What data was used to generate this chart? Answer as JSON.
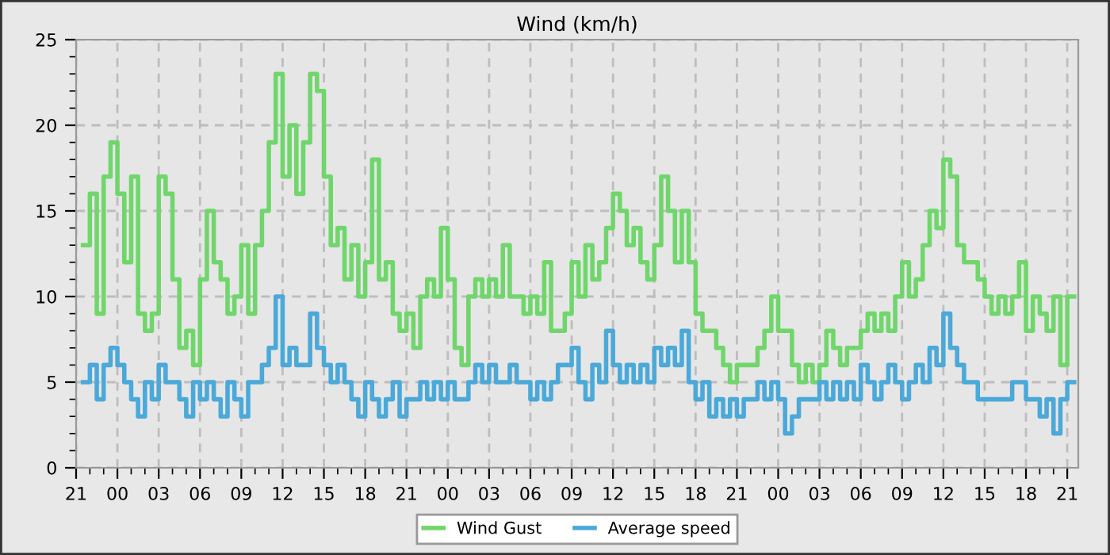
{
  "chart_data": {
    "type": "step",
    "title": "Wind (km/h)",
    "ylim": [
      0,
      25
    ],
    "yticks": [
      0,
      5,
      10,
      15,
      20,
      25
    ],
    "categories": [
      "21",
      null,
      null,
      null,
      null,
      null,
      "00",
      null,
      null,
      null,
      null,
      null,
      "03",
      null,
      null,
      null,
      null,
      null,
      "06",
      null,
      null,
      null,
      null,
      null,
      "09",
      null,
      null,
      null,
      null,
      null,
      "12",
      null,
      null,
      null,
      null,
      null,
      "15",
      null,
      null,
      null,
      null,
      null,
      "18",
      null,
      null,
      null,
      null,
      null,
      "21",
      null,
      null,
      null,
      null,
      null,
      "00",
      null,
      null,
      null,
      null,
      null,
      "03",
      null,
      null,
      null,
      null,
      null,
      "06",
      null,
      null,
      null,
      null,
      null,
      "09",
      null,
      null,
      null,
      null,
      null,
      "12",
      null,
      null,
      null,
      null,
      null,
      "15",
      null,
      null,
      null,
      null,
      null,
      "18",
      null,
      null,
      null,
      null,
      null,
      "21",
      null,
      null,
      null,
      null,
      null,
      "00",
      null,
      null,
      null,
      null,
      null,
      "03",
      null,
      null,
      null,
      null,
      null,
      "06",
      null,
      null,
      null,
      null,
      null,
      "09",
      null,
      null,
      null,
      null,
      null,
      "12",
      null,
      null,
      null,
      null,
      null,
      "15",
      null,
      null,
      null,
      null,
      null,
      "18",
      null,
      null,
      null,
      null,
      null,
      "21",
      null
    ],
    "grid": true,
    "legend": "bottom",
    "series": [
      {
        "name": "Wind Gust",
        "color": "#70d66c",
        "values": [
          null,
          13,
          16,
          9,
          17,
          19,
          16,
          12,
          17,
          9,
          8,
          9,
          17,
          16,
          11,
          7,
          8,
          6,
          11,
          15,
          12,
          11,
          9,
          10,
          13,
          9,
          13,
          15,
          19,
          23,
          17,
          20,
          16,
          19,
          23,
          22,
          17,
          13,
          14,
          11,
          13,
          10,
          12,
          18,
          11,
          12,
          9,
          8,
          9,
          7,
          10,
          11,
          10,
          14,
          11,
          7,
          6,
          10,
          11,
          10,
          11,
          10,
          13,
          10,
          10,
          9,
          10,
          9,
          12,
          8,
          8,
          9,
          12,
          10,
          13,
          11,
          12,
          14,
          16,
          15,
          13,
          14,
          12,
          11,
          13,
          17,
          15,
          12,
          15,
          12,
          9,
          8,
          8,
          7,
          6,
          5,
          6,
          6,
          6,
          7,
          8,
          10,
          8,
          8,
          6,
          5,
          6,
          5,
          6,
          8,
          7,
          6,
          7,
          7,
          8,
          9,
          8,
          9,
          8,
          10,
          12,
          10,
          11,
          13,
          15,
          14,
          18,
          17,
          13,
          12,
          12,
          11,
          10,
          9,
          10,
          9,
          10,
          12,
          8,
          10,
          9,
          8,
          10,
          6,
          10,
          10
        ]
      },
      {
        "name": "Average speed",
        "color": "#4ba9d9",
        "values": [
          null,
          5,
          6,
          4,
          6,
          7,
          6,
          5,
          4,
          3,
          5,
          4,
          6,
          5,
          5,
          4,
          3,
          5,
          4,
          5,
          4,
          3,
          5,
          4,
          3,
          5,
          5,
          6,
          7,
          10,
          6,
          7,
          6,
          6,
          9,
          7,
          6,
          5,
          6,
          5,
          4,
          3,
          5,
          4,
          3,
          4,
          5,
          3,
          4,
          4,
          5,
          4,
          5,
          4,
          5,
          4,
          4,
          5,
          6,
          5,
          6,
          5,
          5,
          6,
          5,
          5,
          4,
          5,
          4,
          5,
          6,
          6,
          7,
          5,
          4,
          6,
          5,
          8,
          6,
          5,
          6,
          5,
          6,
          5,
          7,
          6,
          7,
          6,
          8,
          5,
          4,
          5,
          3,
          4,
          3,
          4,
          3,
          4,
          4,
          5,
          4,
          5,
          4,
          2,
          3,
          4,
          4,
          4,
          5,
          4,
          5,
          4,
          5,
          4,
          6,
          5,
          4,
          5,
          6,
          5,
          4,
          5,
          6,
          5,
          7,
          6,
          9,
          7,
          6,
          5,
          5,
          4,
          4,
          4,
          4,
          4,
          5,
          5,
          4,
          4,
          3,
          4,
          2,
          4,
          5,
          5
        ]
      }
    ]
  }
}
